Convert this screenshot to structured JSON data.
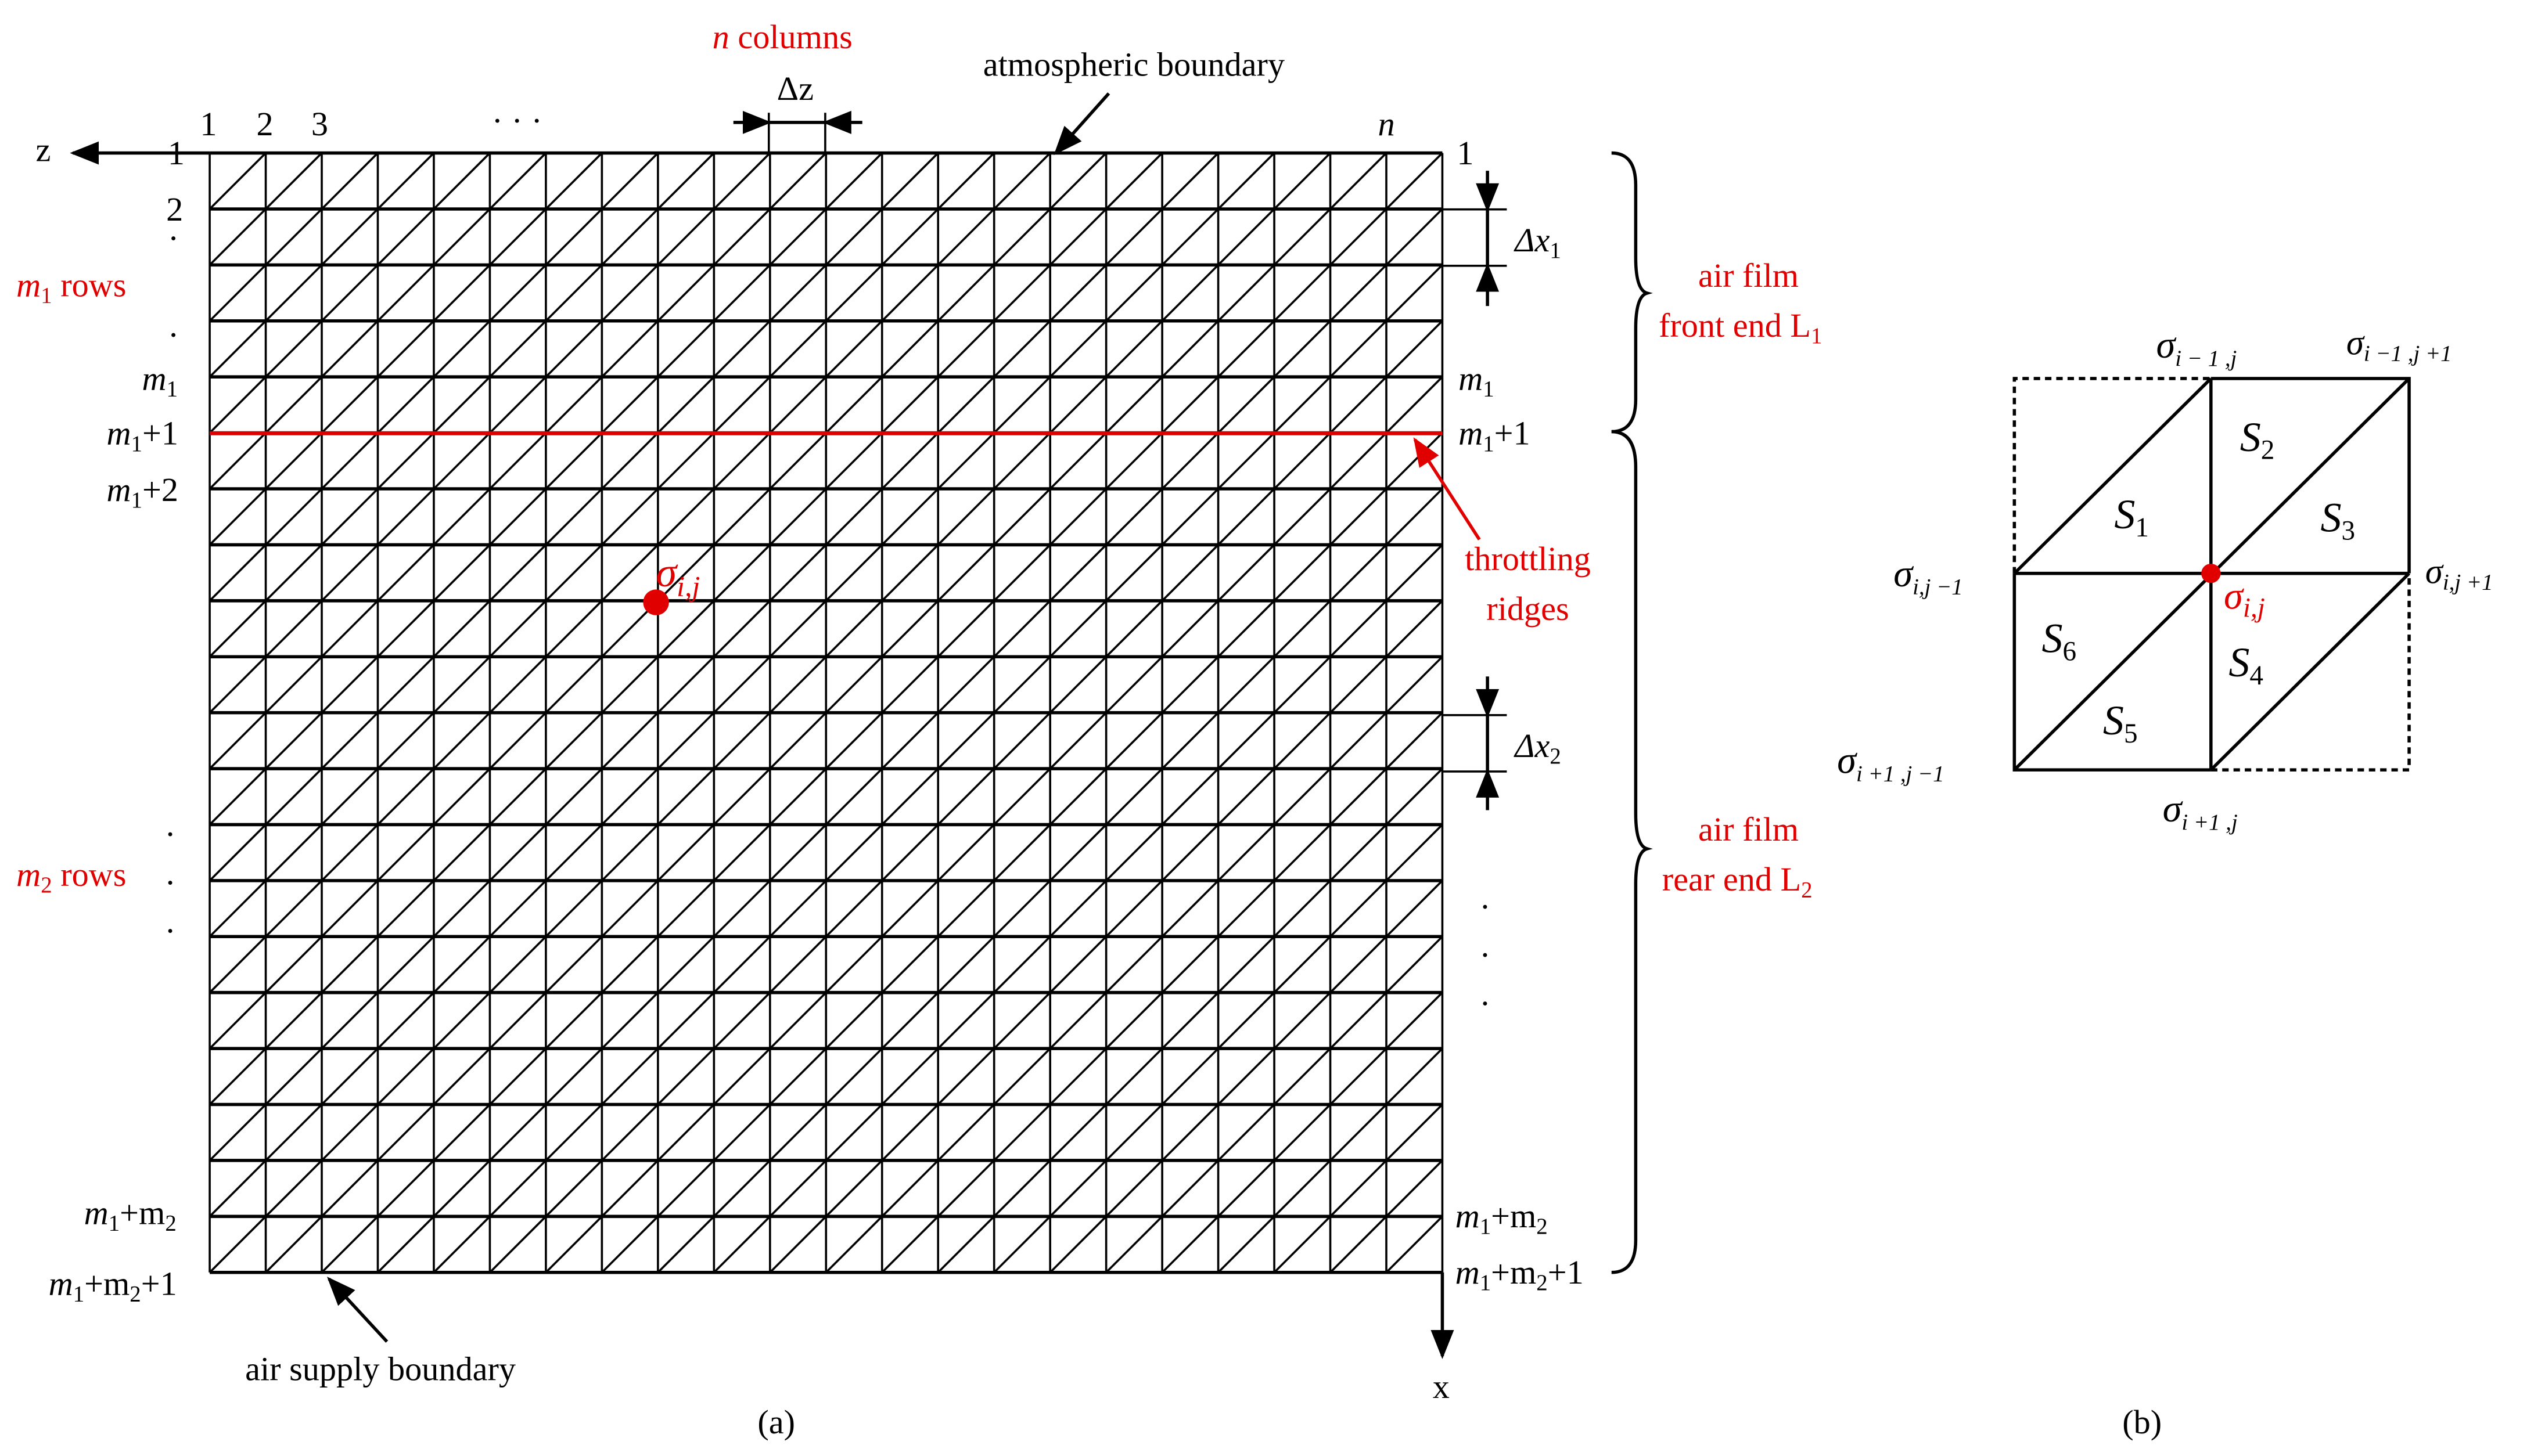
{
  "colors": {
    "accent": "#e00000",
    "line": "#000000"
  },
  "panel_a": {
    "caption": "(a)",
    "n_columns_label": {
      "n": "n",
      "text": " columns"
    },
    "delta_z": "Δz",
    "atmospheric_boundary": "atmospheric boundary",
    "air_supply_boundary": "air supply boundary",
    "z_axis": "z",
    "x_axis": "x",
    "column_labels": [
      "1",
      "2",
      "3",
      "· · ·",
      "n",
      "1"
    ],
    "left_row_labels": {
      "r1": "1",
      "r2": "2",
      "m1": "m",
      "m1_sub": "1",
      "m1p1": "+1",
      "m1p2": "+2",
      "m1m2": "+m",
      "m2_sub": "2",
      "m1m2p1": "+1"
    },
    "right_row_labels": {
      "r1": "1"
    },
    "m1_rows": {
      "m": "m",
      "sub": "1",
      "text": " rows"
    },
    "m2_rows": {
      "m": "m",
      "sub": "2",
      "text": " rows"
    },
    "delta_x1": {
      "d": "Δx",
      "sub": "1"
    },
    "delta_x2": {
      "d": "Δx",
      "sub": "2"
    },
    "air_film_front": [
      "air film",
      "front end L",
      "1"
    ],
    "air_film_rear": [
      "air film",
      "rear end L",
      "2"
    ],
    "throttling_ridges": [
      "throttling",
      "ridges"
    ],
    "sigma_ij": {
      "s": "σ",
      "sub": "i,j"
    },
    "dots": "·"
  },
  "panel_b": {
    "caption": "(b)",
    "sigma": "σ",
    "nodes": {
      "im1_j": "i − 1 ,j",
      "im1_jp1": "i −1 ,j +1",
      "i_jm1": "i,j −1",
      "i_jp1": "i,j +1",
      "ip1_jm1": "i +1 ,j −1",
      "ip1_j": "i +1 ,j",
      "i_j": "i,j"
    },
    "areas": [
      {
        "s": "S",
        "n": "1"
      },
      {
        "s": "S",
        "n": "2"
      },
      {
        "s": "S",
        "n": "3"
      },
      {
        "s": "S",
        "n": "4"
      },
      {
        "s": "S",
        "n": "5"
      },
      {
        "s": "S",
        "n": "6"
      }
    ]
  }
}
